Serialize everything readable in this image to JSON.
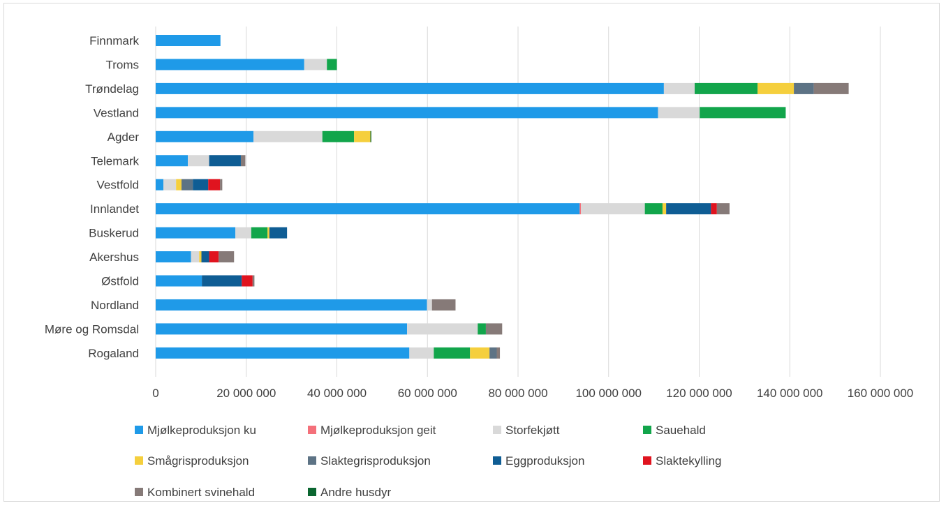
{
  "chart_data": {
    "type": "bar",
    "orientation": "horizontal",
    "stacked": true,
    "title": "",
    "xlabel": "",
    "ylabel": "",
    "xlim": [
      0,
      160000000
    ],
    "x_ticks": [
      0,
      20000000,
      40000000,
      60000000,
      80000000,
      100000000,
      120000000,
      140000000,
      160000000
    ],
    "x_tick_labels": [
      "0",
      "20 000 000",
      "40 000 000",
      "60 000 000",
      "80 000 000",
      "100 000 000",
      "120 000 000",
      "140 000 000",
      "160 000 000"
    ],
    "grid": "vertical",
    "legend_position": "bottom",
    "categories": [
      "Finnmark",
      "Troms",
      "Trøndelag",
      "Vestland",
      "Agder",
      "Telemark",
      "Vestfold",
      "Innlandet",
      "Buskerud",
      "Akershus",
      "Østfold",
      "Nordland",
      "Møre og Romsdal",
      "Rogaland"
    ],
    "series": [
      {
        "name": "Mjølkeproduksjon ku",
        "color": "#1f9ae8",
        "values": [
          14300000,
          32800000,
          112200000,
          110900000,
          21600000,
          7100000,
          1700000,
          93600000,
          17600000,
          7800000,
          10200000,
          59900000,
          55500000,
          56000000
        ]
      },
      {
        "name": "Mjølkeproduksjon geit",
        "color": "#f4707a",
        "values": [
          0,
          0,
          0,
          0,
          0,
          0,
          0,
          300000,
          0,
          0,
          0,
          0,
          0,
          0
        ]
      },
      {
        "name": "Storfekjøtt",
        "color": "#d9d9d9",
        "values": [
          0,
          5000000,
          6800000,
          9200000,
          15200000,
          4700000,
          2800000,
          14100000,
          3500000,
          1800000,
          0,
          1100000,
          15600000,
          5400000
        ]
      },
      {
        "name": "Sauehald",
        "color": "#12a54b",
        "values": [
          0,
          2200000,
          13900000,
          19000000,
          7000000,
          0,
          0,
          3900000,
          3600000,
          0,
          0,
          0,
          1800000,
          8000000
        ]
      },
      {
        "name": "Smågrisproduksjon",
        "color": "#f5cf3d",
        "values": [
          0,
          0,
          8000000,
          0,
          3600000,
          0,
          1200000,
          800000,
          400000,
          500000,
          0,
          0,
          0,
          4300000
        ]
      },
      {
        "name": "Slaktegrisproduksjon",
        "color": "#5d7385",
        "values": [
          0,
          0,
          4400000,
          0,
          0,
          0,
          2500000,
          0,
          0,
          0,
          0,
          0,
          0,
          1600000
        ]
      },
      {
        "name": "Eggproduksjon",
        "color": "#0f5d94",
        "values": [
          0,
          0,
          0,
          0,
          0,
          7000000,
          3400000,
          9900000,
          3900000,
          1700000,
          8800000,
          0,
          0,
          0
        ]
      },
      {
        "name": "Slaktekylling",
        "color": "#e0141f",
        "values": [
          0,
          0,
          0,
          0,
          0,
          0,
          2600000,
          1300000,
          0,
          2100000,
          2400000,
          0,
          0,
          0
        ]
      },
      {
        "name": "Kombinert svinehald",
        "color": "#867a78",
        "values": [
          0,
          0,
          7700000,
          0,
          0,
          1000000,
          500000,
          2800000,
          0,
          3400000,
          400000,
          5200000,
          3600000,
          700000
        ]
      },
      {
        "name": "Andre husdyr",
        "color": "#0b6630",
        "values": [
          0,
          0,
          0,
          0,
          200000,
          0,
          0,
          0,
          0,
          0,
          0,
          0,
          0,
          0
        ]
      }
    ]
  }
}
